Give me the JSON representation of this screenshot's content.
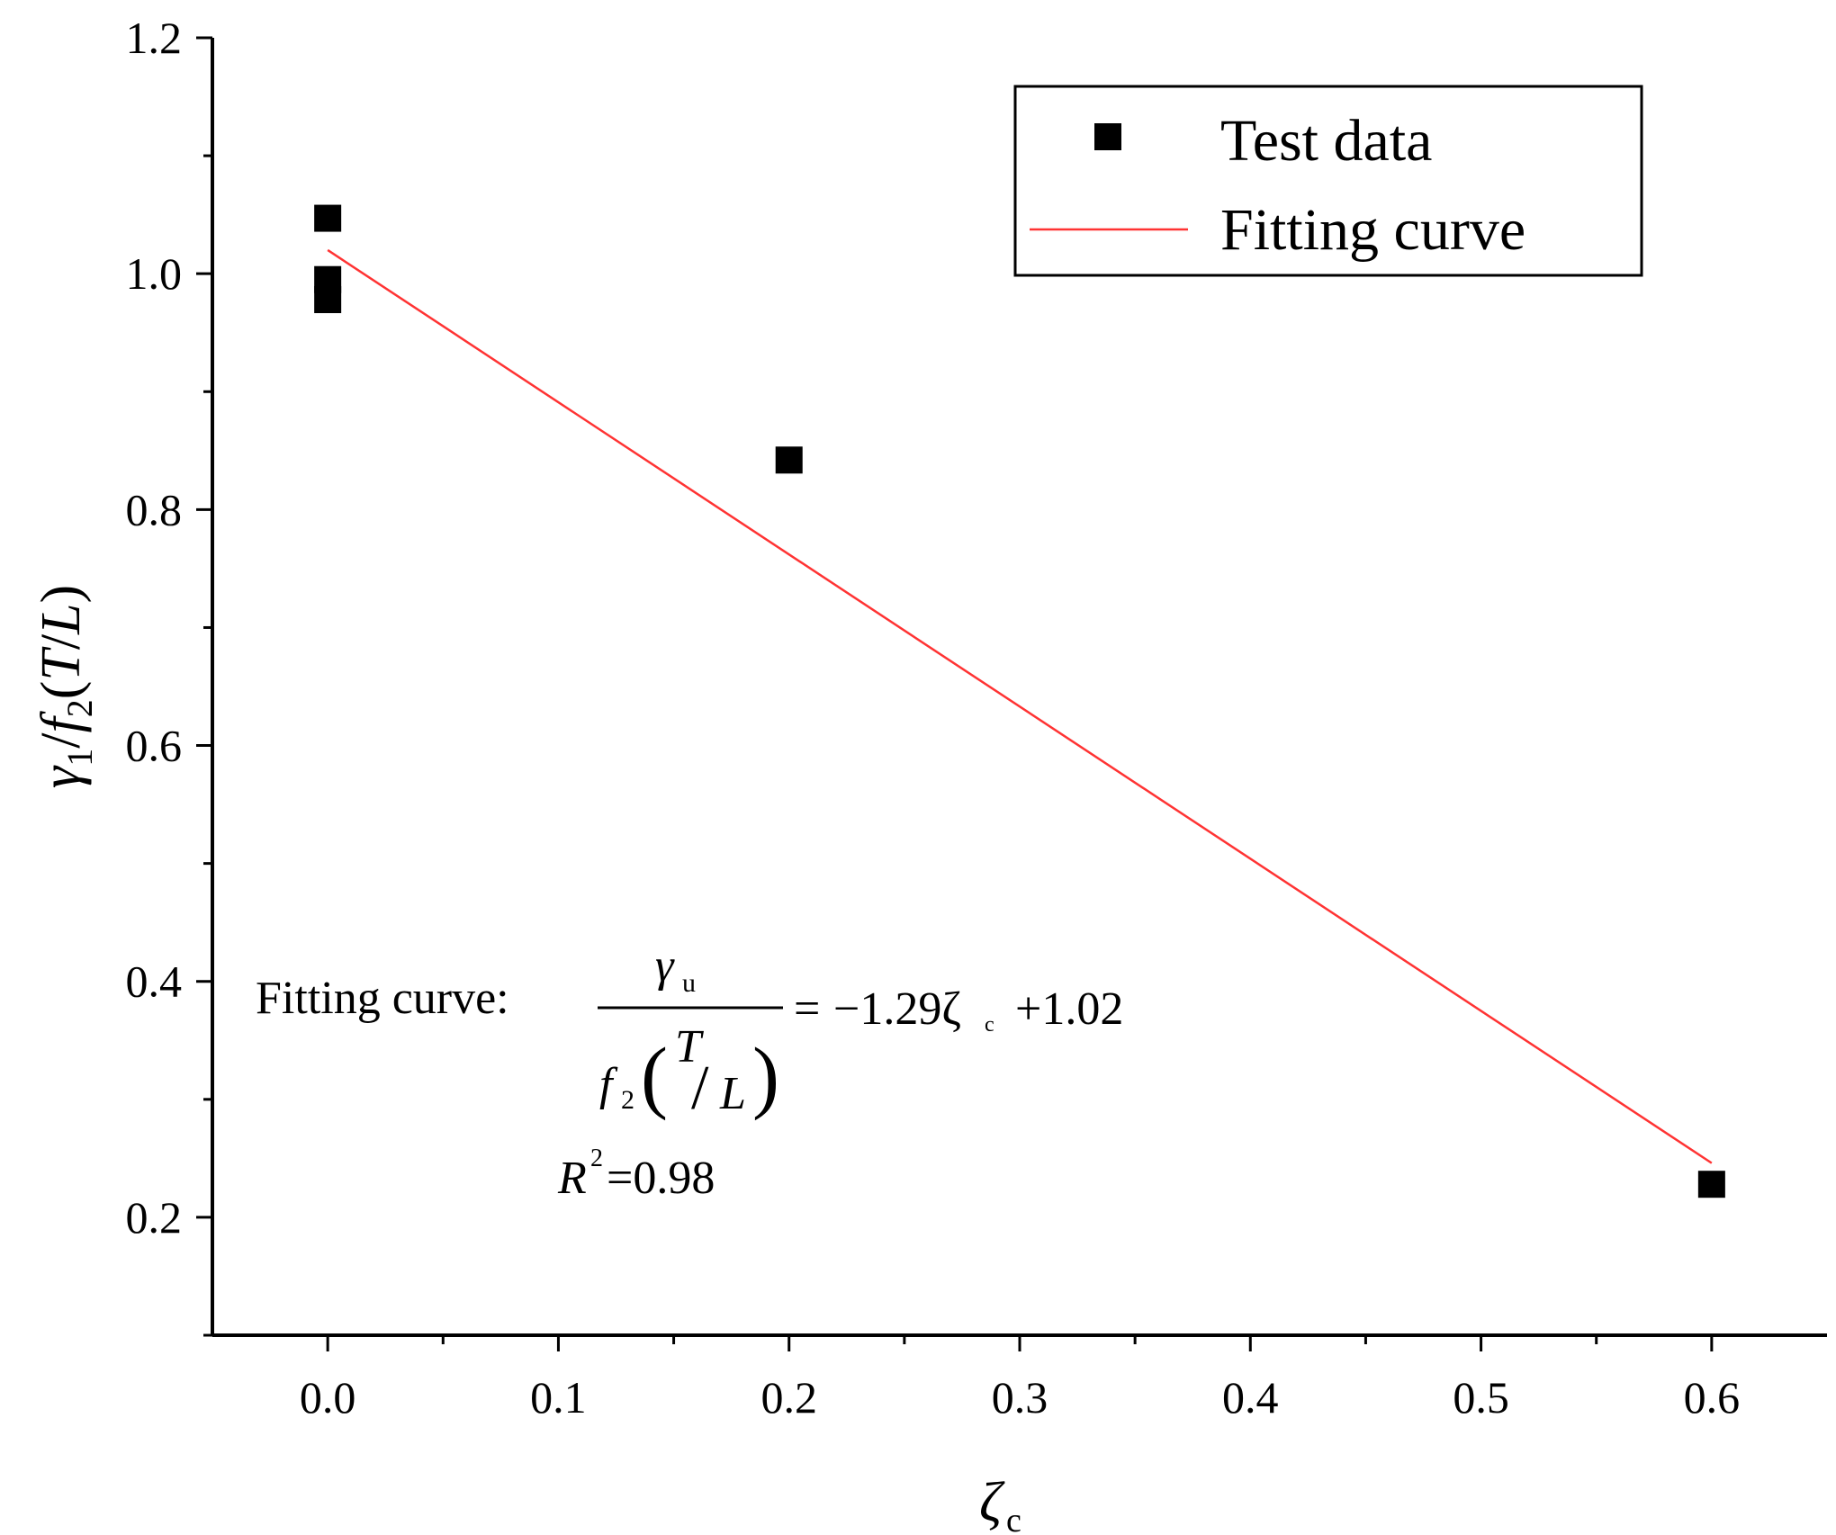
{
  "chart_data": {
    "type": "scatter",
    "title": "",
    "xlabel": "ζc",
    "ylabel": "γ1/f2(T/L)",
    "xlim": [
      -0.05,
      0.65
    ],
    "ylim": [
      0.1,
      1.2
    ],
    "xticks": [
      0.0,
      0.1,
      0.2,
      0.3,
      0.4,
      0.5,
      0.6
    ],
    "xtick_labels": [
      "0.0",
      "0.1",
      "0.2",
      "0.3",
      "0.4",
      "0.5",
      "0.6"
    ],
    "yticks": [
      0.2,
      0.4,
      0.6,
      0.8,
      1.0,
      1.2
    ],
    "ytick_labels": [
      "0.2",
      "0.4",
      "0.6",
      "0.8",
      "1.0",
      "1.2"
    ],
    "grid": false,
    "legend_position": "top-right",
    "series": [
      {
        "name": "Test data",
        "kind": "scatter",
        "marker": "square",
        "color": "#000000",
        "x": [
          0.0,
          0.0,
          0.0,
          0.2,
          0.6
        ],
        "y": [
          1.047,
          0.995,
          0.978,
          0.842,
          0.228
        ]
      },
      {
        "name": "Fitting curve",
        "kind": "line",
        "color": "#ff3333",
        "slope": -1.29,
        "intercept": 1.02,
        "x_range": [
          0.0,
          0.6
        ]
      }
    ],
    "annotations": {
      "label": "Fitting curve:",
      "numerator": "γ",
      "numerator_sub": "u",
      "denominator_f": "f",
      "denominator_sub": "2",
      "denominator_open": "(",
      "denominator_T": "T",
      "denominator_slash": "/",
      "denominator_L": "L",
      "denominator_close": ")",
      "equals": "=",
      "rhs_coef": "−1.29ζ",
      "rhs_sub": "c",
      "rhs_const": "+1.02",
      "r2_R": "R",
      "r2_sup": "2",
      "r2_value": "=0.98"
    },
    "axis_titles": {
      "x_main": "ζ",
      "x_sub": "c",
      "y_gamma": "γ",
      "y_gamma_sub": "1",
      "y_slash": "/",
      "y_f": "f",
      "y_f_sub": "2",
      "y_paren_open": "(",
      "y_T": "T",
      "y_slash2": "/",
      "y_L": "L",
      "y_paren_close": ")"
    }
  }
}
